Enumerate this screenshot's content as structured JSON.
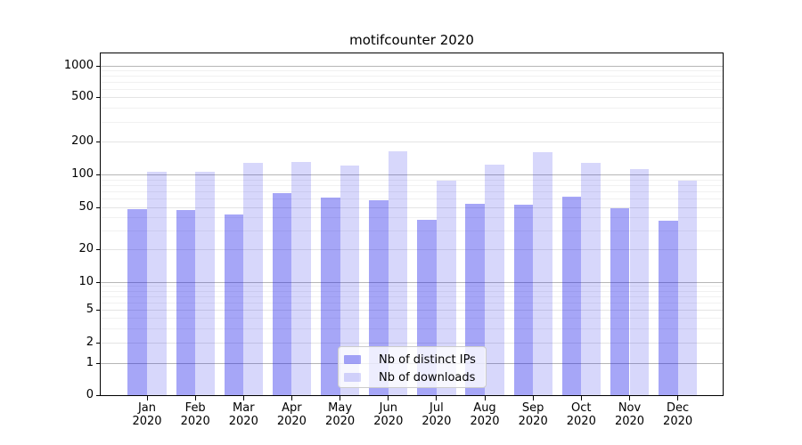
{
  "figure": {
    "background": "#ffffff"
  },
  "chart_data": {
    "type": "bar",
    "title": "motifcounter 2020",
    "categories": [
      "Jan 2020",
      "Feb 2020",
      "Mar 2020",
      "Apr 2020",
      "May 2020",
      "Jun 2020",
      "Jul 2020",
      "Aug 2020",
      "Sep 2020",
      "Oct 2020",
      "Nov 2020",
      "Dec 2020"
    ],
    "series": [
      {
        "name": "Nb of distinct IPs",
        "hex": "#a6a6f6",
        "fill": "rgba(13,13,232,0.37)",
        "values": [
          48,
          47,
          43,
          67,
          61,
          58,
          38,
          54,
          53,
          63,
          49,
          37
        ]
      },
      {
        "name": "Nb of downloads",
        "hex": "#d7d7fb",
        "fill": "rgba(13,13,232,0.165)",
        "values": [
          106,
          106,
          127,
          130,
          121,
          163,
          88,
          124,
          161,
          128,
          111,
          88
        ]
      }
    ],
    "yscale": "symlog",
    "yticks": [
      0,
      1,
      2,
      5,
      10,
      20,
      50,
      100,
      200,
      500,
      1000
    ],
    "ylim": [
      0,
      1300
    ],
    "xlabel": "",
    "ylabel": "",
    "grid": true,
    "legend_position": "lower-center"
  }
}
